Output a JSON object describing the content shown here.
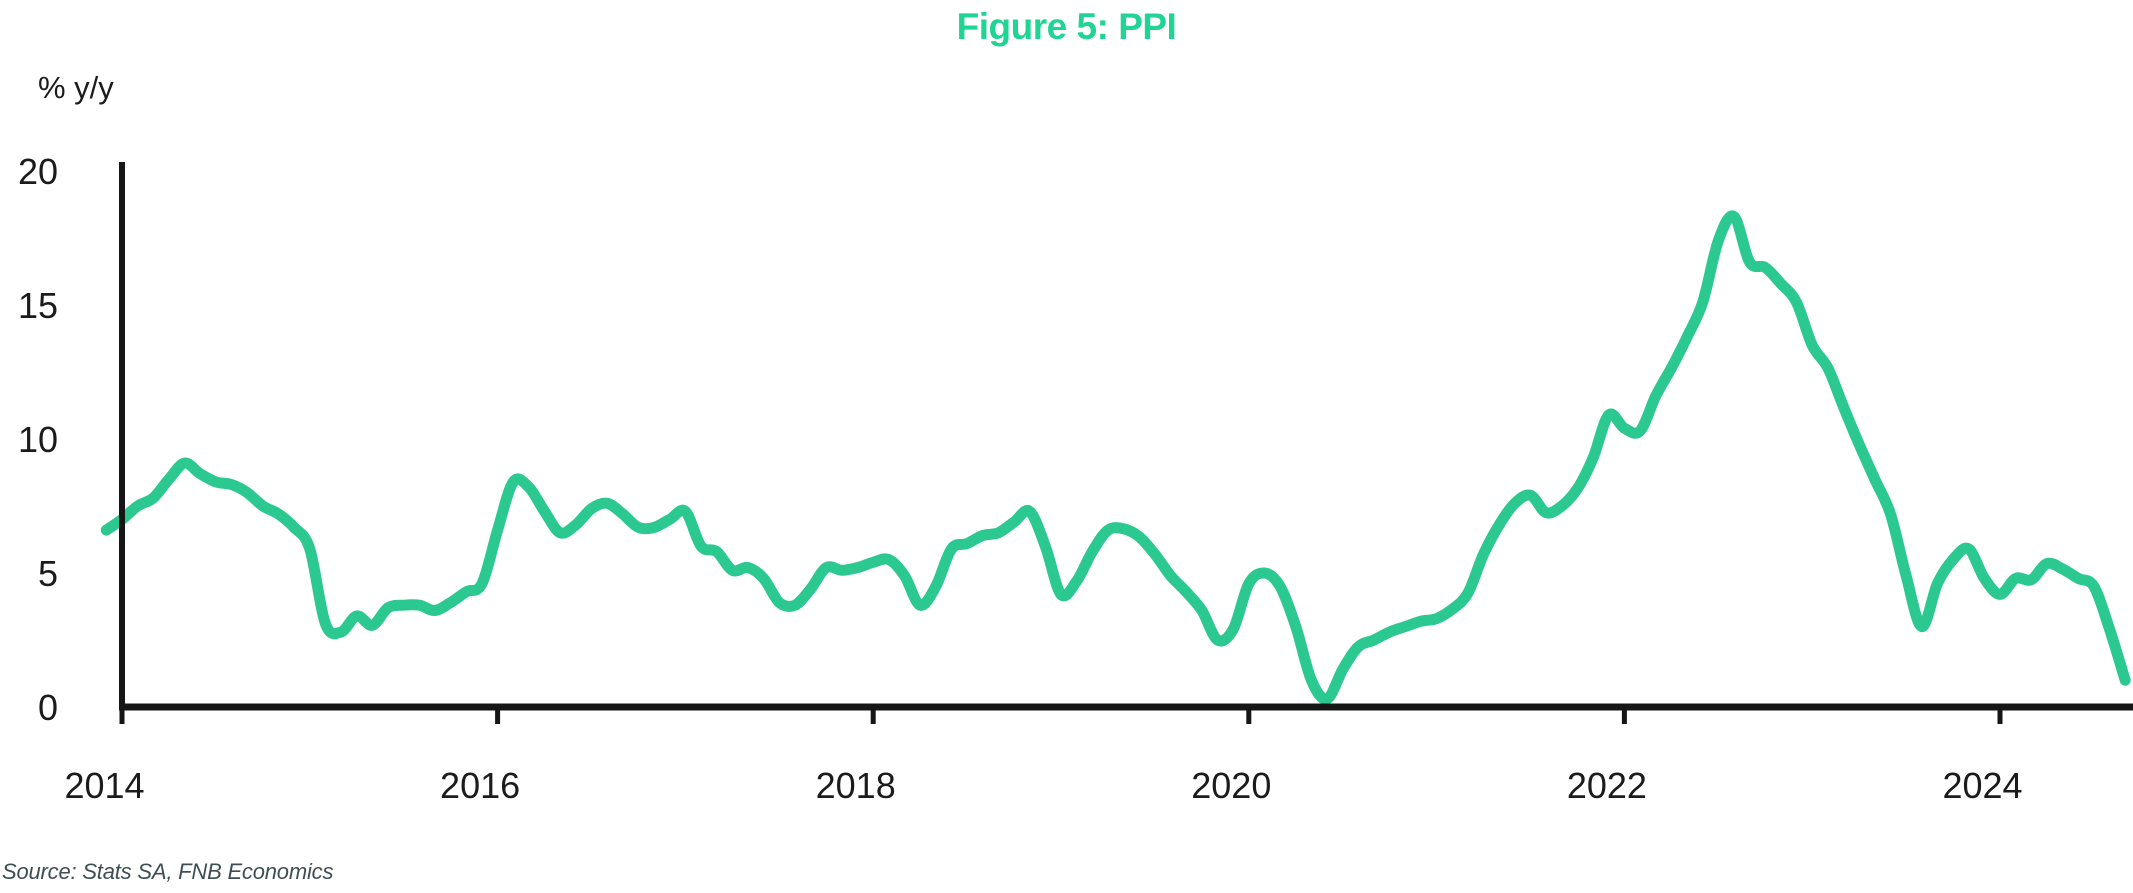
{
  "title": "Figure 5: PPI",
  "y_axis_unit": "% y/y",
  "source": "Source: Stats SA, FNB Economics",
  "colors": {
    "title_green": "#20d494",
    "line_green": "#2bc890",
    "axis_black": "#161616",
    "tick_text": "#1b1b1b",
    "source_gray": "#3e4e54"
  },
  "chart_data": {
    "type": "line",
    "title": "Figure 5: PPI",
    "ylabel": "% y/y",
    "xlabel": "",
    "grid": false,
    "legend": false,
    "ylim": [
      0,
      20
    ],
    "y_ticks": [
      0,
      5,
      10,
      15,
      20
    ],
    "x_ticks": [
      2014,
      2016,
      2018,
      2020,
      2022,
      2024
    ],
    "frequency": "monthly",
    "x_start": "2013-12",
    "x_end": "2024-09",
    "series": [
      {
        "name": "PPI",
        "unit": "% y/y",
        "values": [
          6.6,
          7.0,
          7.5,
          7.8,
          8.5,
          9.1,
          8.7,
          8.4,
          8.3,
          8.0,
          7.5,
          7.2,
          6.7,
          5.9,
          3.1,
          2.8,
          3.4,
          3.05,
          3.7,
          3.8,
          3.8,
          3.6,
          3.9,
          4.3,
          4.6,
          6.6,
          8.4,
          8.2,
          7.3,
          6.5,
          6.8,
          7.4,
          7.6,
          7.2,
          6.7,
          6.7,
          7.0,
          7.3,
          6.0,
          5.8,
          5.1,
          5.2,
          4.8,
          3.9,
          3.8,
          4.4,
          5.2,
          5.1,
          5.2,
          5.4,
          5.5,
          4.9,
          3.8,
          4.5,
          5.9,
          6.1,
          6.4,
          6.5,
          6.9,
          7.3,
          6.0,
          4.2,
          4.7,
          5.8,
          6.6,
          6.65,
          6.35,
          5.7,
          4.9,
          4.3,
          3.6,
          2.5,
          2.9,
          4.6,
          5.0,
          4.5,
          3.0,
          1.0,
          0.3,
          1.4,
          2.25,
          2.5,
          2.8,
          3.0,
          3.2,
          3.3,
          3.65,
          4.25,
          5.7,
          6.8,
          7.6,
          7.9,
          7.25,
          7.5,
          8.15,
          9.3,
          10.9,
          10.4,
          10.3,
          11.6,
          12.65,
          13.8,
          15.1,
          17.4,
          18.3,
          16.6,
          16.4,
          15.8,
          15.1,
          13.5,
          12.65,
          11.2,
          9.8,
          8.5,
          7.2,
          4.9,
          3.0,
          4.6,
          5.5,
          5.9,
          4.8,
          4.2,
          4.8,
          4.75,
          5.35,
          5.15,
          4.8,
          4.5,
          2.9,
          1.0
        ]
      }
    ]
  }
}
